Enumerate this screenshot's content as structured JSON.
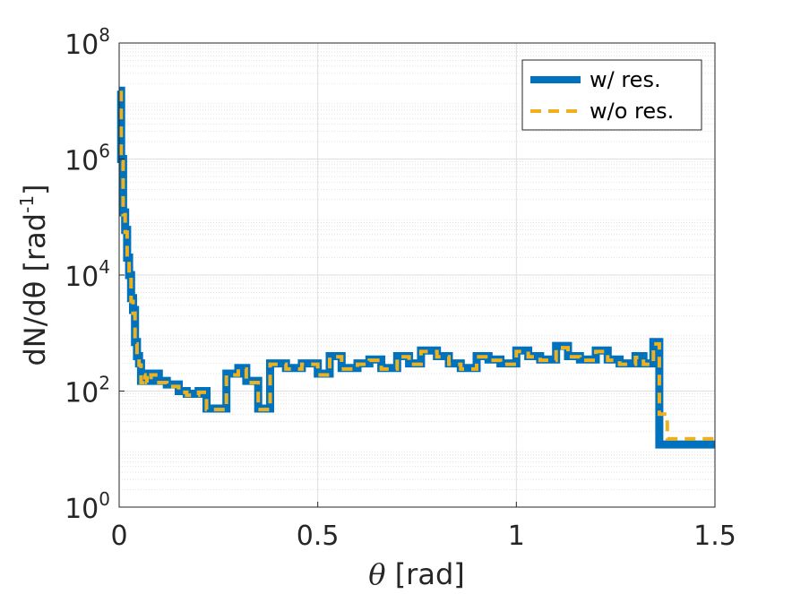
{
  "chart_data": {
    "type": "line",
    "xlabel_symbol": "θ",
    "xlabel_unit": "[rad]",
    "ylabel_main": "dN/dθ [rad",
    "ylabel_exp": "-1",
    "ylabel_close": "]",
    "xlim": [
      0,
      1.5
    ],
    "ylim_log10": [
      0,
      8
    ],
    "yscale": "log",
    "grid": true,
    "minor_grid": true,
    "legend_position": "top-right",
    "x_ticks": [
      {
        "value": 0,
        "label": "0"
      },
      {
        "value": 0.5,
        "label": "0.5"
      },
      {
        "value": 1,
        "label": "1"
      },
      {
        "value": 1.5,
        "label": "1.5"
      }
    ],
    "y_ticks": [
      {
        "exp": 0,
        "base": "10",
        "sup": "0"
      },
      {
        "exp": 2,
        "base": "10",
        "sup": "2"
      },
      {
        "exp": 4,
        "base": "10",
        "sup": "4"
      },
      {
        "exp": 6,
        "base": "10",
        "sup": "6"
      },
      {
        "exp": 8,
        "base": "10",
        "sup": "8"
      }
    ],
    "series": [
      {
        "name": "w/ res.",
        "color": "#0072BD",
        "style": "solid",
        "x": [
          0,
          0.005,
          0.01,
          0.015,
          0.02,
          0.025,
          0.03,
          0.035,
          0.04,
          0.045,
          0.05,
          0.055,
          0.06,
          0.065,
          0.07,
          0.08,
          0.1,
          0.12,
          0.15,
          0.17,
          0.2,
          0.21,
          0.22,
          0.24,
          0.27,
          0.3,
          0.32,
          0.35,
          0.38,
          0.42,
          0.46,
          0.5,
          0.53,
          0.56,
          0.6,
          0.63,
          0.66,
          0.7,
          0.73,
          0.76,
          0.8,
          0.83,
          0.86,
          0.9,
          0.93,
          0.96,
          1.0,
          1.03,
          1.06,
          1.1,
          1.13,
          1.16,
          1.2,
          1.23,
          1.26,
          1.3,
          1.32,
          1.335,
          1.345,
          1.36,
          1.5
        ],
        "y": [
          15000000,
          1000000,
          120000,
          60000,
          20000,
          10000,
          4000,
          2500,
          700,
          400,
          300,
          150,
          200,
          180,
          150,
          200,
          150,
          130,
          100,
          90,
          100,
          100,
          50,
          50,
          200,
          250,
          150,
          50,
          300,
          250,
          300,
          200,
          400,
          250,
          300,
          350,
          250,
          400,
          300,
          500,
          400,
          300,
          250,
          400,
          350,
          300,
          500,
          400,
          350,
          600,
          400,
          350,
          500,
          350,
          300,
          400,
          300,
          300,
          700,
          12,
          12
        ]
      },
      {
        "name": "w/o res.",
        "color": "#EDB120",
        "style": "dashed",
        "x": [
          0,
          0.005,
          0.01,
          0.015,
          0.02,
          0.025,
          0.03,
          0.035,
          0.04,
          0.045,
          0.05,
          0.055,
          0.06,
          0.065,
          0.07,
          0.08,
          0.1,
          0.12,
          0.15,
          0.17,
          0.2,
          0.21,
          0.22,
          0.24,
          0.27,
          0.3,
          0.32,
          0.35,
          0.38,
          0.42,
          0.46,
          0.5,
          0.53,
          0.56,
          0.6,
          0.63,
          0.66,
          0.7,
          0.73,
          0.76,
          0.8,
          0.83,
          0.86,
          0.9,
          0.93,
          0.96,
          1.0,
          1.03,
          1.06,
          1.1,
          1.13,
          1.16,
          1.2,
          1.23,
          1.26,
          1.3,
          1.32,
          1.335,
          1.345,
          1.36,
          1.38,
          1.5
        ],
        "y": [
          14000000,
          900000,
          110000,
          55000,
          18000,
          9000,
          3500,
          2200,
          650,
          380,
          280,
          140,
          190,
          170,
          140,
          190,
          140,
          120,
          95,
          85,
          95,
          95,
          48,
          48,
          190,
          240,
          140,
          48,
          290,
          240,
          290,
          190,
          390,
          240,
          290,
          340,
          240,
          390,
          290,
          480,
          390,
          290,
          240,
          390,
          340,
          290,
          480,
          390,
          340,
          560,
          390,
          340,
          480,
          340,
          290,
          380,
          290,
          290,
          650,
          40,
          15,
          15
        ]
      }
    ]
  }
}
